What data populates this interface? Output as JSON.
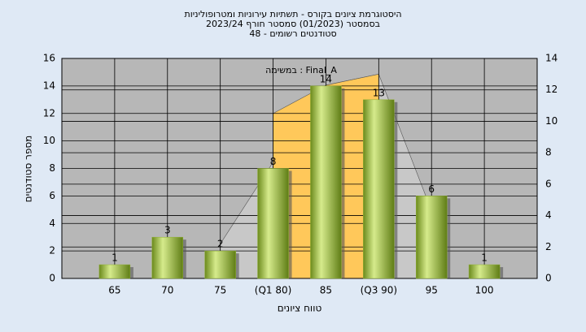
{
  "chart_data": {
    "type": "bar",
    "title_lines": [
      "היסטוגרמת ציונים בקורס - תשתיות עירוניות ומטרופוליניות",
      "בסמסטר  (01/2023)  סמסטר חורף  2023/24",
      "סטודנטים רשומים - 48"
    ],
    "annotation": "במשימה : Final_A",
    "x_label": "טווח ציונים",
    "y_label": "מספר סטודנטים",
    "categories": [
      "65",
      "70",
      "75",
      "(Q1 80)",
      "85",
      "(Q3 90)",
      "95",
      "100"
    ],
    "values": [
      1,
      3,
      2,
      8,
      14,
      13,
      6,
      1
    ],
    "color": "#8fb033",
    "areas": [
      {
        "color": "#c8c8c8",
        "axis": "y2",
        "values": [
          null,
          null,
          2.2,
          7.4,
          12.3,
          13,
          4.3,
          null
        ]
      },
      {
        "color": "#ffc85a",
        "axis": "y2",
        "values": [
          null,
          null,
          null,
          10.5,
          12.3,
          13,
          null,
          null
        ]
      }
    ],
    "ylim": [
      0,
      16
    ],
    "yticks": [
      0,
      2,
      4,
      6,
      8,
      10,
      12,
      14,
      16
    ],
    "y2lim": [
      0,
      14
    ],
    "y2ticks": [
      0,
      2,
      4,
      6,
      8,
      10,
      12,
      14
    ],
    "grid": true
  }
}
